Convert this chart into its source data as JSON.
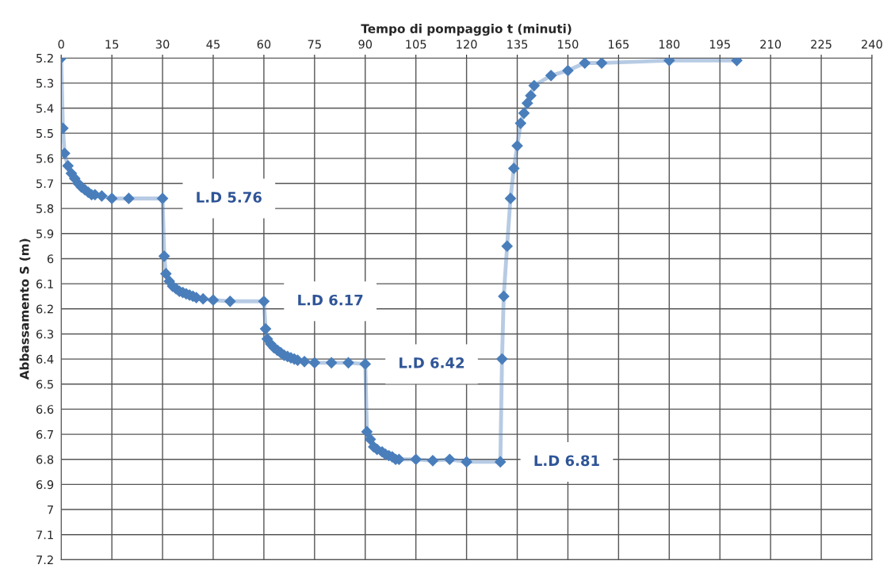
{
  "chart_data": {
    "type": "line",
    "xlabel": "Tempo di pompaggio t (minuti)",
    "ylabel": "Abbassamento S (m)",
    "x": [
      0,
      0.5,
      1,
      2,
      3,
      4,
      5,
      6,
      7,
      8,
      9,
      10,
      12,
      15,
      20,
      30,
      30.5,
      31,
      32,
      33,
      34,
      35,
      36,
      37,
      38,
      39,
      40,
      42,
      45,
      50,
      60,
      60.5,
      61,
      62,
      63,
      64,
      65,
      66,
      67,
      68,
      69,
      70,
      72,
      75,
      80,
      85,
      90,
      90.5,
      91.5,
      92.5,
      93.5,
      95,
      96,
      97,
      98,
      99,
      100,
      105,
      110,
      115,
      120,
      130,
      130.5,
      131,
      132,
      133,
      134,
      135,
      136,
      137,
      138,
      139,
      140,
      145,
      150,
      155,
      160,
      180,
      200
    ],
    "series": [
      {
        "color": "#4a7ebb",
        "values": [
          5.2,
          5.48,
          5.58,
          5.63,
          5.66,
          5.68,
          5.7,
          5.715,
          5.725,
          5.735,
          5.745,
          5.745,
          5.75,
          5.76,
          5.76,
          5.76,
          5.99,
          6.06,
          6.09,
          6.11,
          6.12,
          6.13,
          6.135,
          6.14,
          6.145,
          6.15,
          6.155,
          6.16,
          6.165,
          6.17,
          6.17,
          6.28,
          6.32,
          6.34,
          6.355,
          6.365,
          6.375,
          6.385,
          6.39,
          6.395,
          6.4,
          6.405,
          6.41,
          6.415,
          6.415,
          6.415,
          6.42,
          6.69,
          6.72,
          6.75,
          6.76,
          6.77,
          6.78,
          6.785,
          6.79,
          6.8,
          6.8,
          6.8,
          6.805,
          6.8,
          6.81,
          6.81,
          6.4,
          6.15,
          5.95,
          5.76,
          5.64,
          5.55,
          5.46,
          5.42,
          5.38,
          5.35,
          5.31,
          5.27,
          5.25,
          5.22,
          5.22,
          5.21,
          5.21
        ]
      }
    ],
    "marker": "diamond",
    "line_style": "solid",
    "grid": true,
    "xlim": [
      0,
      240
    ],
    "xticks": [
      0,
      15,
      30,
      45,
      60,
      75,
      90,
      105,
      120,
      135,
      150,
      165,
      180,
      195,
      210,
      225,
      240
    ],
    "ylim": [
      7.2,
      5.2
    ],
    "yticks": [
      5.2,
      5.3,
      5.4,
      5.5,
      5.6,
      5.7,
      5.8,
      5.9,
      6,
      6.1,
      6.2,
      6.3,
      6.4,
      6.5,
      6.6,
      6.7,
      6.8,
      6.9,
      7,
      7.1,
      7.2
    ],
    "annotations": [
      {
        "text": "L.D 5.76",
        "x": 30,
        "y": 5.76
      },
      {
        "text": "L.D 6.17",
        "x": 60,
        "y": 6.17
      },
      {
        "text": "L.D 6.42",
        "x": 90,
        "y": 6.42
      },
      {
        "text": "L.D 6.81",
        "x": 130,
        "y": 6.81
      }
    ]
  }
}
